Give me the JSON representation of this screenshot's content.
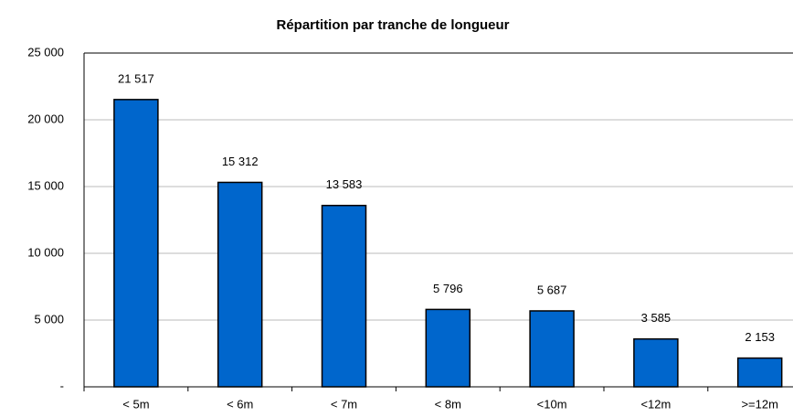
{
  "chart_data": {
    "type": "bar",
    "title": "Répartition par tranche de longueur",
    "categories": [
      "< 5m",
      "< 6m",
      "< 7m",
      "< 8m",
      "<10m",
      "<12m",
      ">=12m"
    ],
    "values": [
      21517,
      15312,
      13583,
      5796,
      5687,
      3585,
      2153
    ],
    "value_labels": [
      "21 517",
      "15 312",
      "13 583",
      "5 796",
      "5 687",
      "3 585",
      "2 153"
    ],
    "color": "#0066cc",
    "ylim": [
      0,
      25000
    ],
    "yticks": [
      {
        "value": 0,
        "label": "-"
      },
      {
        "value": 5000,
        "label": "5 000"
      },
      {
        "value": 10000,
        "label": "10 000"
      },
      {
        "value": 15000,
        "label": "15 000"
      },
      {
        "value": 20000,
        "label": "20 000"
      },
      {
        "value": 25000,
        "label": "25 000"
      }
    ],
    "grid": true
  }
}
